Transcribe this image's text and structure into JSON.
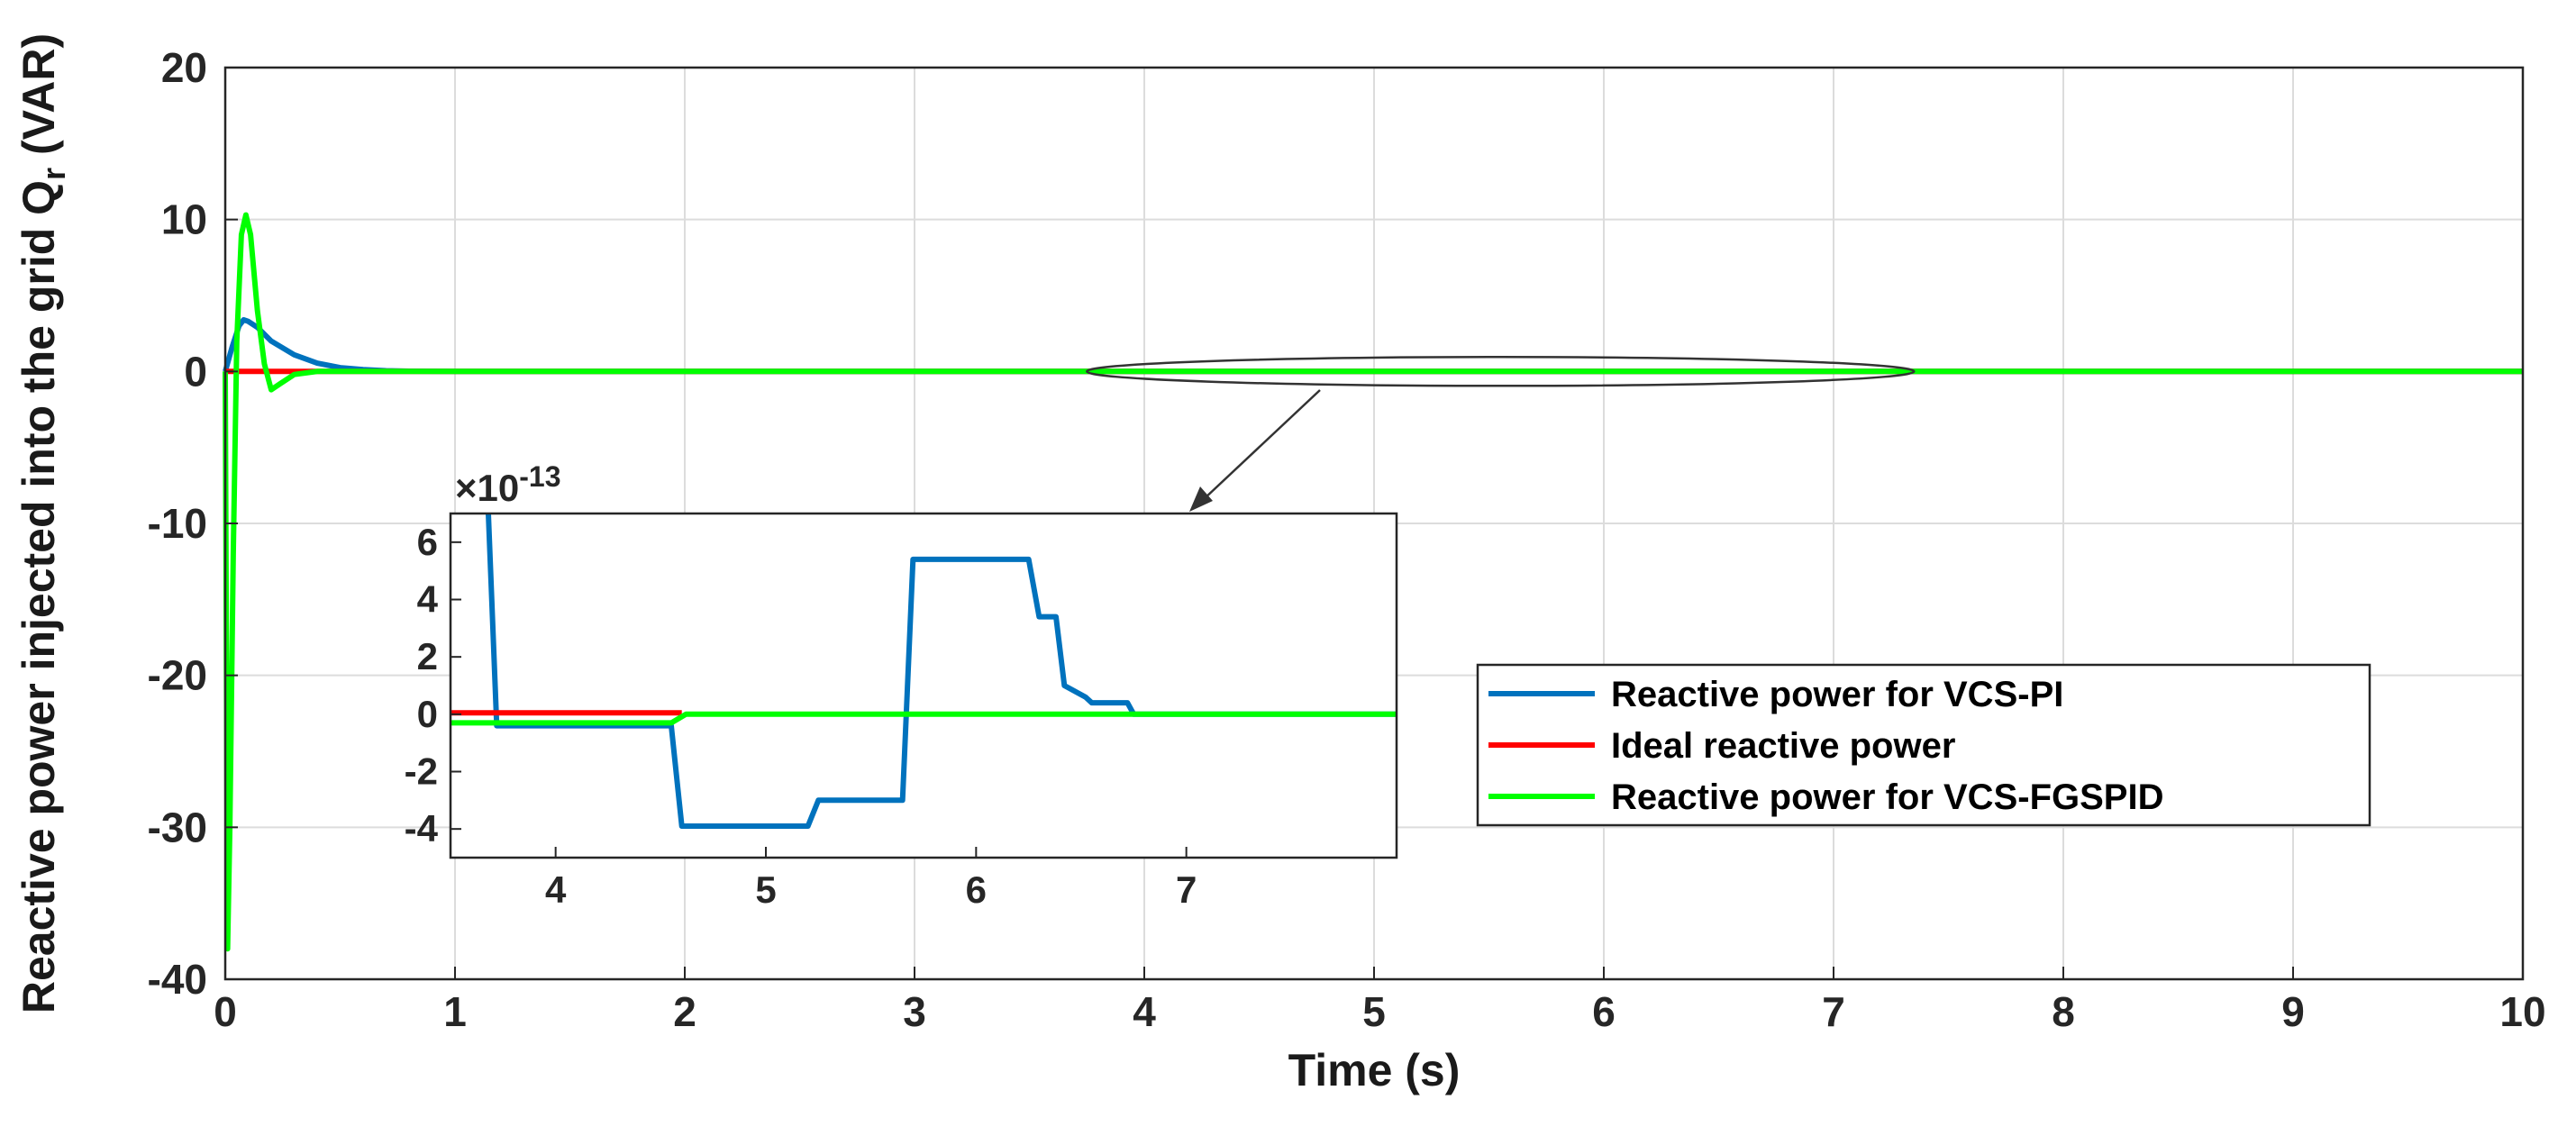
{
  "chart_data": {
    "type": "line",
    "title": "",
    "xlabel": "Time (s)",
    "ylabel_main": "Reactive power injected into the grid Q",
    "ylabel_sub": "r",
    "ylabel_unit": " (VAR)",
    "xlim": [
      0,
      10
    ],
    "ylim": [
      -40,
      20
    ],
    "xticks": [
      "0",
      "1",
      "2",
      "3",
      "4",
      "5",
      "6",
      "7",
      "8",
      "9",
      "10"
    ],
    "yticks": [
      "20",
      "10",
      "0",
      "-10",
      "-20",
      "-30",
      "-40"
    ],
    "grid": true,
    "legend_position": "center-right",
    "series": [
      {
        "name": "Reactive power for VCS-PI",
        "color": "#0072BD",
        "x": [
          0,
          0.03,
          0.06,
          0.08,
          0.1,
          0.14,
          0.2,
          0.3,
          0.4,
          0.5,
          0.6,
          0.7,
          0.8,
          1.0,
          10
        ],
        "y": [
          0,
          1.6,
          3.0,
          3.4,
          3.3,
          2.9,
          2.0,
          1.1,
          0.55,
          0.25,
          0.12,
          0.05,
          0.02,
          0,
          0
        ]
      },
      {
        "name": "Ideal reactive power",
        "color": "#FF0000",
        "x": [
          0,
          10
        ],
        "y": [
          0,
          0
        ]
      },
      {
        "name": "Reactive power for VCS-FGSPID",
        "color": "#00FF00",
        "x": [
          0,
          0.01,
          0.02,
          0.035,
          0.05,
          0.07,
          0.09,
          0.11,
          0.14,
          0.17,
          0.2,
          0.24,
          0.3,
          0.4,
          0.5,
          10
        ],
        "y": [
          0,
          -38,
          -30,
          -12,
          2,
          9,
          10.3,
          9,
          4,
          0.5,
          -1.2,
          -0.8,
          -0.2,
          0,
          0,
          0
        ]
      }
    ],
    "inset": {
      "scale_label": "×10",
      "scale_exp": "-13",
      "xlim": [
        3.5,
        8
      ],
      "ylim": [
        -5,
        7
      ],
      "xticks": [
        "4",
        "5",
        "6",
        "7"
      ],
      "yticks": [
        "6",
        "4",
        "2",
        "0",
        "-2",
        "-4"
      ],
      "zoom_region_x": [
        3.75,
        7.35
      ],
      "series": [
        {
          "name": "Reactive power for VCS-PI",
          "color": "#0072BD",
          "x": [
            3.68,
            3.72,
            4.55,
            4.6,
            5.2,
            5.25,
            5.65,
            5.7,
            6.25,
            6.3,
            6.38,
            6.42,
            6.52,
            6.55,
            6.62,
            6.72,
            6.75,
            8
          ],
          "y": [
            7,
            -0.4,
            -0.4,
            -3.9,
            -3.9,
            -3.0,
            -3.0,
            5.4,
            5.4,
            3.4,
            3.4,
            1.0,
            0.6,
            0.4,
            0.4,
            0.4,
            0,
            0
          ]
        },
        {
          "name": "Ideal reactive power",
          "color": "#FF0000",
          "x": [
            3.5,
            4.6
          ],
          "y": [
            0.05,
            0.05
          ]
        },
        {
          "name": "Reactive power for VCS-FGSPID",
          "color": "#00FF00",
          "x": [
            3.5,
            4.55,
            4.62,
            8
          ],
          "y": [
            -0.3,
            -0.3,
            0,
            0
          ]
        }
      ]
    }
  }
}
